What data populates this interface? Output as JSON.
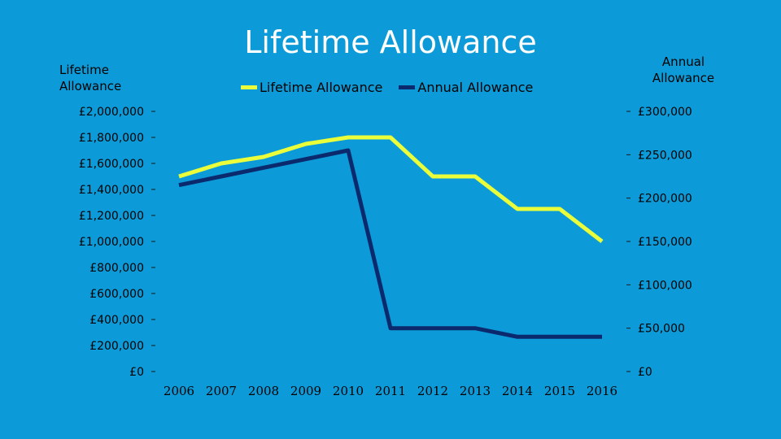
{
  "colors": {
    "background": "#0c9bd8",
    "lifetime": "#eaff3a",
    "annual": "#0b2a6e",
    "title": "#ffffff"
  },
  "chart_data": {
    "type": "line",
    "title": "Lifetime Allowance",
    "categories": [
      "2006",
      "2007",
      "2008",
      "2009",
      "2010",
      "2011",
      "2012",
      "2013",
      "2014",
      "2015",
      "2016"
    ],
    "series": [
      {
        "name": "Lifetime Allowance",
        "axis": "left",
        "values": [
          1500000,
          1600000,
          1650000,
          1750000,
          1800000,
          1800000,
          1500000,
          1500000,
          1250000,
          1250000,
          1000000
        ]
      },
      {
        "name": "Annual Allowance",
        "axis": "right",
        "values": [
          215000,
          225000,
          235000,
          245000,
          255000,
          50000,
          50000,
          50000,
          40000,
          40000,
          40000
        ]
      }
    ],
    "left_axis": {
      "label": "Lifetime Allowance",
      "ylim": [
        0,
        2000000
      ],
      "ticks": [
        "£2,000,000",
        "£1,800,000",
        "£1,600,000",
        "£1,400,000",
        "£1,200,000",
        "£1,000,000",
        "£800,000",
        "£600,000",
        "£400,000",
        "£200,000",
        "£0"
      ]
    },
    "right_axis": {
      "label": "Annual Allowance",
      "ylim": [
        0,
        300000
      ],
      "ticks": [
        "£300,000",
        "£250,000",
        "£200,000",
        "£150,000",
        "£100,000",
        "£50,000",
        "£0"
      ]
    },
    "legend_position": "top-center",
    "grid": false
  }
}
